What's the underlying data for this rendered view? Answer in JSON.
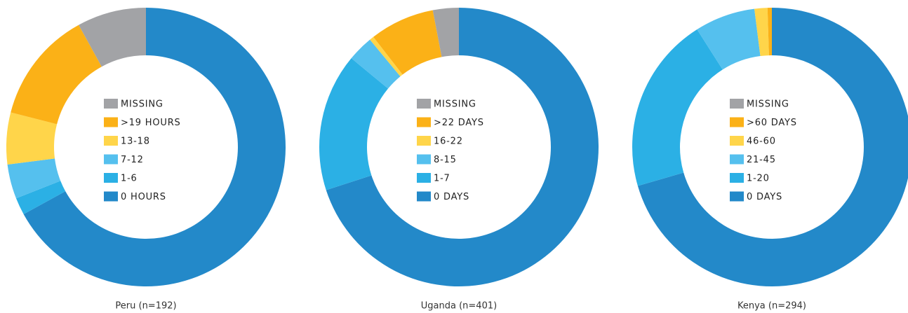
{
  "chart_data": [
    {
      "type": "pie",
      "title": "Peru (n=192)",
      "categories": [
        "MISSING",
        ">19 HOURS",
        "13-18",
        "7-12",
        "1-6",
        "0 HOURS"
      ],
      "values": [
        8,
        13,
        6,
        4,
        2,
        67
      ],
      "colors": [
        "#a2a3a6",
        "#fbb117",
        "#ffd54a",
        "#55c0ee",
        "#2bb0e5",
        "#2389c9"
      ]
    },
    {
      "type": "pie",
      "title": "Uganda (n=401)",
      "categories": [
        "MISSING",
        ">22 DAYS",
        "16-22",
        "8-15",
        "1-7",
        "0 DAYS"
      ],
      "values": [
        3,
        7.5,
        0.5,
        3,
        16,
        70
      ],
      "colors": [
        "#a2a3a6",
        "#fbb117",
        "#ffd54a",
        "#55c0ee",
        "#2bb0e5",
        "#2389c9"
      ]
    },
    {
      "type": "pie",
      "title": "Kenya (n=294)",
      "categories": [
        "MISSING",
        ">60 DAYS",
        "46-60",
        "21-45",
        "1-20",
        "0 DAYS"
      ],
      "values": [
        0,
        0.5,
        1.5,
        7,
        20.5,
        70.5
      ],
      "colors": [
        "#a2a3a6",
        "#fbb117",
        "#ffd54a",
        "#55c0ee",
        "#2bb0e5",
        "#2389c9"
      ]
    }
  ]
}
